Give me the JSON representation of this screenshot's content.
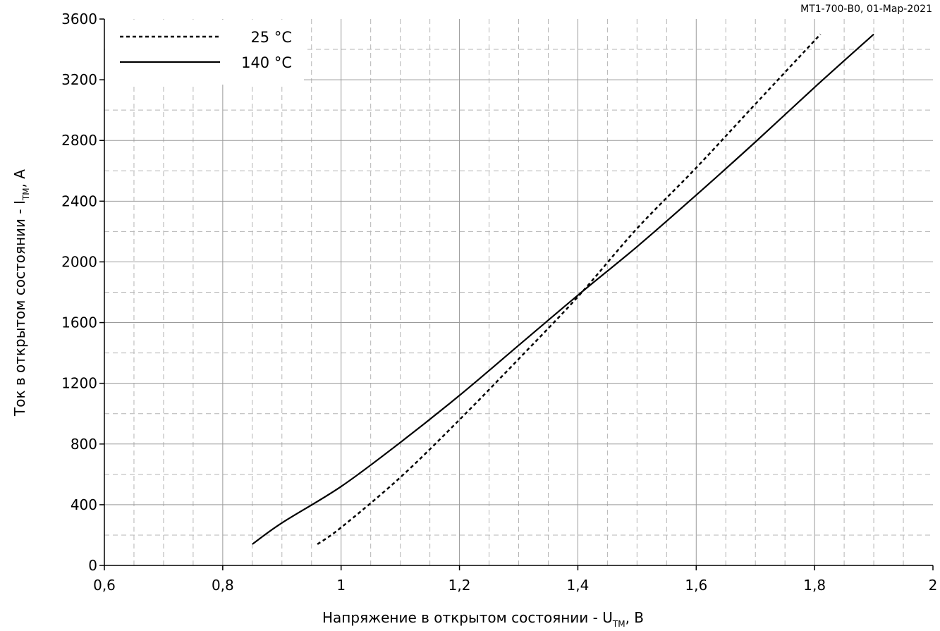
{
  "chart_data": {
    "type": "line",
    "annotation": "МТ1-700-В0, 01-Мар-2021",
    "xlabel": {
      "main": "Напряжение в открытом состоянии - U",
      "sub": "ТМ",
      "tail": ", В"
    },
    "ylabel": {
      "main": "Ток в открытом состоянии - I",
      "sub": "ТМ",
      "tail": ", А"
    },
    "xlim": [
      0.6,
      2
    ],
    "ylim": [
      0,
      3600
    ],
    "x_ticks": [
      0.6,
      0.8,
      1,
      1.2,
      1.4,
      1.6,
      1.8,
      2
    ],
    "x_tick_labels": [
      "0,6",
      "0,8",
      "1",
      "1,2",
      "1,4",
      "1,6",
      "1,8",
      "2"
    ],
    "y_ticks": [
      0,
      400,
      800,
      1200,
      1600,
      2000,
      2400,
      2800,
      3200,
      3600
    ],
    "y_tick_labels": [
      "0",
      "400",
      "800",
      "1200",
      "1600",
      "2000",
      "2400",
      "2800",
      "3200",
      "3600"
    ],
    "x_minor_step": 0.05,
    "y_minor_step": 200,
    "grid": true,
    "legend_position": "top-left",
    "series": [
      {
        "name": "25 °C",
        "style": "dashed",
        "color": "#000000",
        "points": [
          [
            0.96,
            140
          ],
          [
            1.0,
            250
          ],
          [
            1.1,
            580
          ],
          [
            1.2,
            960
          ],
          [
            1.3,
            1360
          ],
          [
            1.4,
            1770
          ],
          [
            1.5,
            2220
          ],
          [
            1.6,
            2620
          ],
          [
            1.7,
            3040
          ],
          [
            1.81,
            3500
          ]
        ]
      },
      {
        "name": "140 °C",
        "style": "solid",
        "color": "#000000",
        "points": [
          [
            0.85,
            140
          ],
          [
            0.9,
            280
          ],
          [
            1.0,
            520
          ],
          [
            1.1,
            810
          ],
          [
            1.2,
            1120
          ],
          [
            1.3,
            1450
          ],
          [
            1.4,
            1780
          ],
          [
            1.5,
            2100
          ],
          [
            1.6,
            2440
          ],
          [
            1.7,
            2790
          ],
          [
            1.8,
            3150
          ],
          [
            1.9,
            3500
          ]
        ]
      }
    ]
  }
}
